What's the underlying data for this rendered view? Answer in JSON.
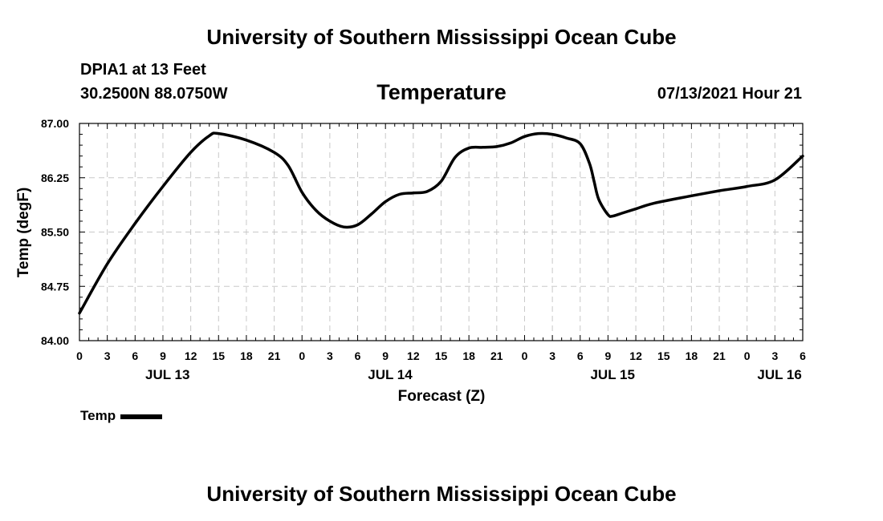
{
  "header": {
    "title_top": "University of Southern Mississippi Ocean Cube",
    "station": "DPIA1 at 13 Feet",
    "coords": "30.2500N  88.0750W",
    "datetime": "07/13/2021 Hour 21",
    "title_bottom": "University of Southern Mississippi Ocean Cube"
  },
  "legend": {
    "label": "Temp"
  },
  "chart_data": {
    "type": "line",
    "title": "Temperature",
    "xlabel": "Forecast (Z)",
    "ylabel": "Temp (degF)",
    "xlim": [
      0,
      78
    ],
    "ylim": [
      84.0,
      87.0
    ],
    "yticks": [
      84.0,
      84.75,
      85.5,
      86.25,
      87.0
    ],
    "ytick_labels": [
      "84.00",
      "84.75",
      "85.50",
      "86.25",
      "87.00"
    ],
    "xtick_hours": [
      0,
      3,
      6,
      9,
      12,
      15,
      18,
      21,
      24,
      27,
      30,
      33,
      36,
      39,
      42,
      45,
      48,
      51,
      54,
      57,
      60,
      63,
      66,
      69,
      72,
      75,
      78
    ],
    "xtick_labels": [
      "0",
      "3",
      "6",
      "9",
      "12",
      "15",
      "18",
      "21",
      "0",
      "3",
      "6",
      "9",
      "12",
      "15",
      "18",
      "21",
      "0",
      "3",
      "6",
      "9",
      "12",
      "15",
      "18",
      "21",
      "0",
      "3",
      "6"
    ],
    "day_labels": [
      {
        "hour": 9.5,
        "label": "JUL 13"
      },
      {
        "hour": 33.5,
        "label": "JUL 14"
      },
      {
        "hour": 57.5,
        "label": "JUL 15"
      },
      {
        "hour": 75.5,
        "label": "JUL 16"
      }
    ],
    "grid": true,
    "legend_position": "bottom-left",
    "series": [
      {
        "name": "Temp",
        "x": [
          0,
          3,
          6,
          9,
          12,
          14,
          15,
          18,
          21,
          22.5,
          24,
          25.5,
          27,
          28.5,
          30,
          31.5,
          33,
          34.5,
          36,
          37.5,
          39,
          40.5,
          42,
          43.5,
          45,
          46.5,
          48,
          49.5,
          51,
          52.5,
          54,
          55,
          55.5,
          56,
          57,
          57.5,
          58.5,
          60,
          62,
          66,
          69,
          72,
          75,
          78
        ],
        "y": [
          84.38,
          85.06,
          85.62,
          86.13,
          86.6,
          86.83,
          86.86,
          86.77,
          86.6,
          86.42,
          86.05,
          85.8,
          85.65,
          85.57,
          85.6,
          85.75,
          85.92,
          86.02,
          86.04,
          86.06,
          86.2,
          86.53,
          86.66,
          86.67,
          86.68,
          86.73,
          86.82,
          86.86,
          86.85,
          86.8,
          86.72,
          86.45,
          86.2,
          85.95,
          85.74,
          85.72,
          85.76,
          85.82,
          85.9,
          86.0,
          86.07,
          86.13,
          86.22,
          86.55
        ]
      }
    ]
  }
}
